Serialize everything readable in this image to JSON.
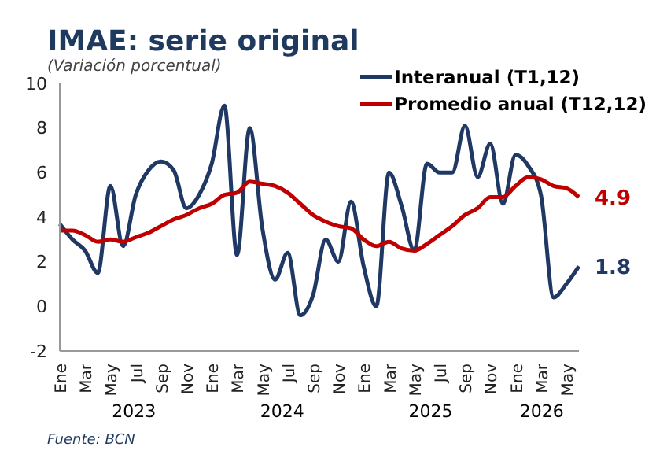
{
  "chart_data": {
    "type": "line",
    "title": "IMAE: serie original",
    "subtitle": "(Variación porcentual)",
    "categories": [
      "Ene",
      null,
      "Mar",
      null,
      "May",
      null,
      "Jul",
      null,
      "Sep",
      null,
      "Nov",
      null,
      "Ene",
      null,
      "Mar",
      null,
      "May",
      null,
      "Jul",
      null,
      "Sep",
      null,
      "Nov",
      null,
      "Ene",
      null,
      "Mar",
      null,
      "May",
      null,
      "Jul",
      null,
      "Sep",
      null,
      "Nov",
      null,
      "Ene",
      null,
      "Mar",
      null,
      "May",
      null
    ],
    "series": [
      {
        "name": "Interanual (T1,12)",
        "color": "#1f3864",
        "values": [
          3.7,
          3.0,
          2.5,
          1.5,
          5.4,
          2.7,
          5.0,
          6.1,
          6.5,
          6.1,
          4.4,
          5.0,
          6.4,
          9.0,
          2.3,
          8.0,
          3.5,
          1.2,
          2.4,
          -0.4,
          0.5,
          3.0,
          2.0,
          4.7,
          1.8,
          0.0,
          6.0,
          4.5,
          2.5,
          6.4,
          6.0,
          6.0,
          8.1,
          5.8,
          7.3,
          4.6,
          6.8,
          6.3,
          5.0,
          0.4,
          1.0,
          1.8
        ],
        "value_labels": [
          null,
          null,
          null,
          null,
          null,
          null,
          null,
          null,
          null,
          null,
          null,
          null,
          null,
          null,
          null,
          null,
          null,
          null,
          null,
          null,
          null,
          null,
          null,
          null,
          null,
          null,
          null,
          null,
          null,
          null,
          null,
          null,
          null,
          null,
          null,
          null,
          null,
          null,
          null,
          null,
          null,
          "1.8"
        ]
      },
      {
        "name": "Promedio anual (T12,12)",
        "color": "#c00000",
        "values": [
          3.4,
          3.4,
          3.2,
          2.9,
          3.0,
          2.9,
          3.1,
          3.3,
          3.6,
          3.9,
          4.1,
          4.4,
          4.6,
          5.0,
          5.1,
          5.6,
          5.5,
          5.4,
          5.1,
          4.6,
          4.1,
          3.8,
          3.6,
          3.5,
          3.0,
          2.7,
          2.9,
          2.6,
          2.5,
          2.8,
          3.2,
          3.6,
          4.1,
          4.4,
          4.9,
          4.9,
          5.4,
          5.8,
          5.7,
          5.4,
          5.3,
          4.9
        ],
        "value_labels": [
          null,
          null,
          null,
          null,
          null,
          null,
          null,
          null,
          null,
          null,
          null,
          null,
          null,
          null,
          null,
          null,
          null,
          null,
          null,
          null,
          null,
          null,
          null,
          null,
          null,
          null,
          null,
          null,
          null,
          null,
          null,
          null,
          null,
          null,
          null,
          null,
          null,
          null,
          null,
          null,
          null,
          "4.9"
        ]
      }
    ],
    "ylim": [
      -2,
      10
    ],
    "yticks": [
      -2,
      0,
      2,
      4,
      6,
      8,
      10
    ],
    "legend": "top right",
    "marker": "none",
    "line_style": "solid",
    "annotations": [
      "2023",
      "2024",
      "2025",
      "2026",
      "Fuente: BCN"
    ]
  }
}
